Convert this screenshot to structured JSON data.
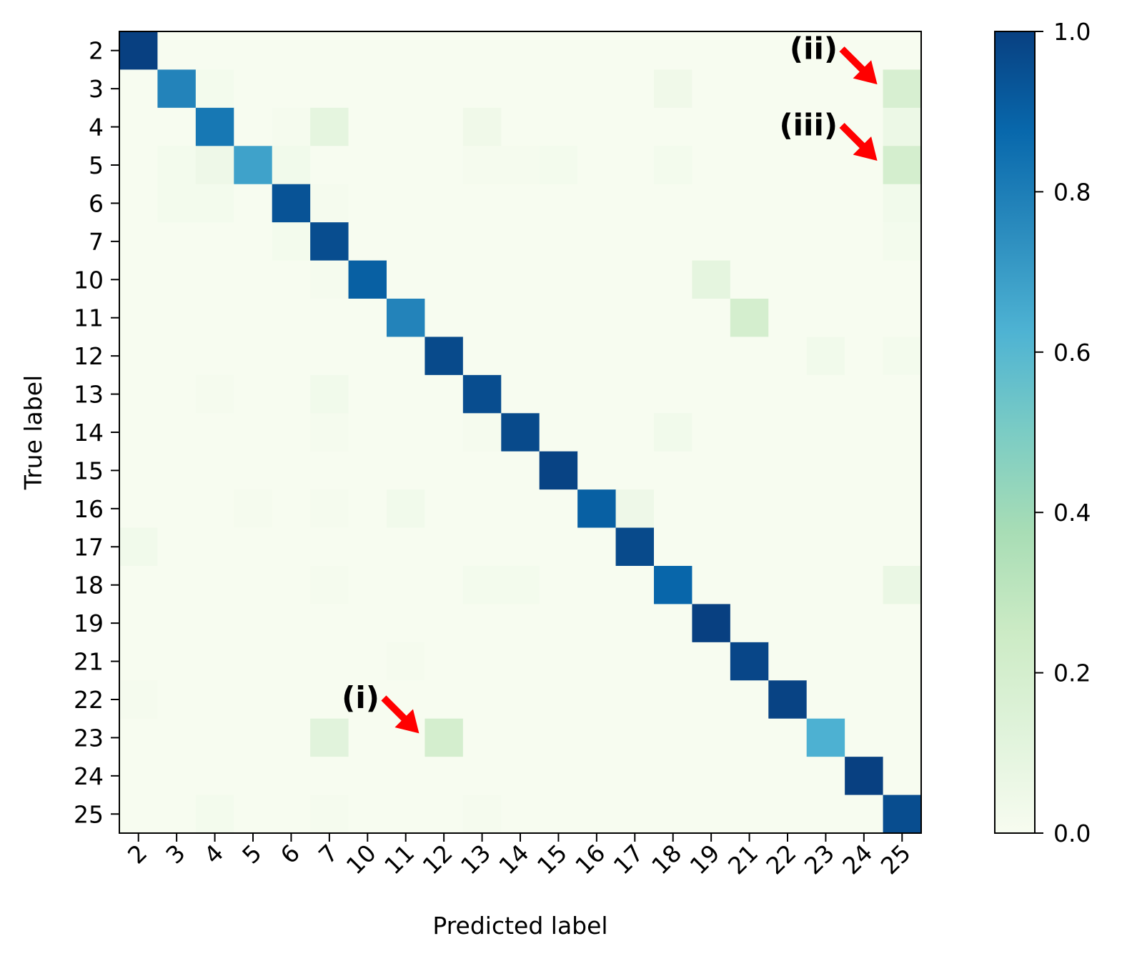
{
  "chart_data": {
    "type": "heatmap",
    "title": "",
    "xlabel": "Predicted label",
    "ylabel": "True label",
    "x_categories": [
      "2",
      "3",
      "4",
      "5",
      "6",
      "7",
      "10",
      "11",
      "12",
      "13",
      "14",
      "15",
      "16",
      "17",
      "18",
      "19",
      "21",
      "22",
      "23",
      "24",
      "25"
    ],
    "y_categories": [
      "2",
      "3",
      "4",
      "5",
      "6",
      "7",
      "10",
      "11",
      "12",
      "13",
      "14",
      "15",
      "16",
      "17",
      "18",
      "19",
      "21",
      "22",
      "23",
      "24",
      "25"
    ],
    "colormap": "GnBu",
    "colorbar": {
      "range": [
        0.0,
        1.0
      ],
      "ticks": [
        0.0,
        0.2,
        0.4,
        0.6,
        0.8,
        1.0
      ],
      "tick_labels": [
        "0.0",
        "0.2",
        "0.4",
        "0.6",
        "0.8",
        "1.0"
      ]
    },
    "matrix": [
      [
        1.0,
        0,
        0,
        0,
        0,
        0,
        0,
        0,
        0,
        0,
        0,
        0,
        0,
        0,
        0,
        0,
        0,
        0,
        0,
        0,
        0
      ],
      [
        0,
        0.78,
        0.02,
        0,
        0,
        0,
        0,
        0,
        0,
        0,
        0,
        0,
        0,
        0,
        0.04,
        0,
        0,
        0,
        0,
        0,
        0.18
      ],
      [
        0,
        0,
        0.82,
        0,
        0.01,
        0.1,
        0,
        0,
        0,
        0.04,
        0,
        0,
        0,
        0,
        0,
        0,
        0,
        0,
        0,
        0,
        0.06
      ],
      [
        0,
        0.02,
        0.05,
        0.68,
        0.03,
        0,
        0,
        0,
        0,
        0.01,
        0.01,
        0.02,
        0,
        0,
        0.02,
        0,
        0,
        0,
        0,
        0,
        0.2
      ],
      [
        0,
        0.02,
        0.02,
        0,
        0.94,
        0.01,
        0,
        0,
        0,
        0,
        0,
        0,
        0,
        0,
        0,
        0,
        0,
        0,
        0,
        0,
        0.03
      ],
      [
        0,
        0,
        0,
        0,
        0.02,
        0.96,
        0,
        0,
        0,
        0,
        0,
        0,
        0,
        0,
        0,
        0,
        0,
        0,
        0,
        0,
        0.02
      ],
      [
        0,
        0,
        0,
        0,
        0,
        0.01,
        0.9,
        0,
        0,
        0,
        0,
        0,
        0,
        0,
        0,
        0.1,
        0,
        0,
        0,
        0,
        0
      ],
      [
        0,
        0,
        0,
        0,
        0,
        0,
        0,
        0.78,
        0,
        0,
        0,
        0,
        0,
        0,
        0,
        0,
        0.2,
        0,
        0,
        0,
        0
      ],
      [
        0,
        0,
        0,
        0,
        0,
        0,
        0,
        0,
        0.97,
        0,
        0,
        0,
        0,
        0,
        0,
        0,
        0,
        0,
        0.03,
        0,
        0.02
      ],
      [
        0,
        0,
        0.01,
        0,
        0,
        0.03,
        0,
        0,
        0,
        0.96,
        0,
        0,
        0,
        0,
        0,
        0,
        0,
        0,
        0,
        0,
        0
      ],
      [
        0,
        0,
        0,
        0,
        0,
        0.01,
        0,
        0,
        0,
        0.01,
        0.97,
        0,
        0,
        0,
        0.03,
        0,
        0,
        0,
        0,
        0,
        0
      ],
      [
        0,
        0,
        0,
        0,
        0,
        0,
        0,
        0,
        0,
        0,
        0,
        0.99,
        0,
        0,
        0,
        0,
        0,
        0,
        0,
        0,
        0
      ],
      [
        0,
        0,
        0,
        0.01,
        0,
        0.01,
        0,
        0.03,
        0,
        0,
        0,
        0,
        0.9,
        0.05,
        0,
        0,
        0,
        0,
        0,
        0,
        0
      ],
      [
        0.03,
        0,
        0,
        0,
        0,
        0,
        0,
        0,
        0,
        0,
        0,
        0,
        0,
        0.97,
        0,
        0,
        0,
        0,
        0,
        0,
        0
      ],
      [
        0,
        0,
        0,
        0,
        0,
        0.01,
        0,
        0,
        0,
        0.02,
        0.02,
        0,
        0,
        0,
        0.88,
        0,
        0,
        0,
        0,
        0,
        0.07
      ],
      [
        0,
        0,
        0,
        0,
        0,
        0,
        0,
        0,
        0,
        0,
        0,
        0,
        0,
        0,
        0,
        1.0,
        0,
        0,
        0,
        0,
        0
      ],
      [
        0,
        0,
        0,
        0,
        0,
        0,
        0,
        0.01,
        0,
        0,
        0,
        0,
        0,
        0,
        0,
        0,
        0.98,
        0,
        0,
        0,
        0
      ],
      [
        0.01,
        0,
        0,
        0,
        0,
        0,
        0,
        0,
        0,
        0,
        0,
        0,
        0,
        0,
        0,
        0,
        0,
        0.99,
        0,
        0,
        0
      ],
      [
        0,
        0,
        0,
        0,
        0,
        0.12,
        0,
        0,
        0.2,
        0,
        0,
        0,
        0,
        0,
        0,
        0,
        0,
        0,
        0.63,
        0,
        0
      ],
      [
        0,
        0,
        0,
        0,
        0,
        0,
        0,
        0,
        0,
        0,
        0,
        0,
        0,
        0,
        0,
        0,
        0,
        0,
        0,
        1.0,
        0
      ],
      [
        0,
        0,
        0.02,
        0,
        0,
        0.01,
        0,
        0,
        0,
        0.01,
        0,
        0,
        0,
        0,
        0,
        0,
        0,
        0,
        0,
        0,
        0.96
      ]
    ],
    "annotations": [
      {
        "text": "(i)",
        "points_to": {
          "true": "23",
          "predicted": "12"
        }
      },
      {
        "text": "(ii)",
        "points_to": {
          "true": "3",
          "predicted": "25"
        }
      },
      {
        "text": "(iii)",
        "points_to": {
          "true": "5",
          "predicted": "25"
        }
      }
    ]
  },
  "colors": {
    "arrow": "#ff0000",
    "frame": "#000000"
  }
}
